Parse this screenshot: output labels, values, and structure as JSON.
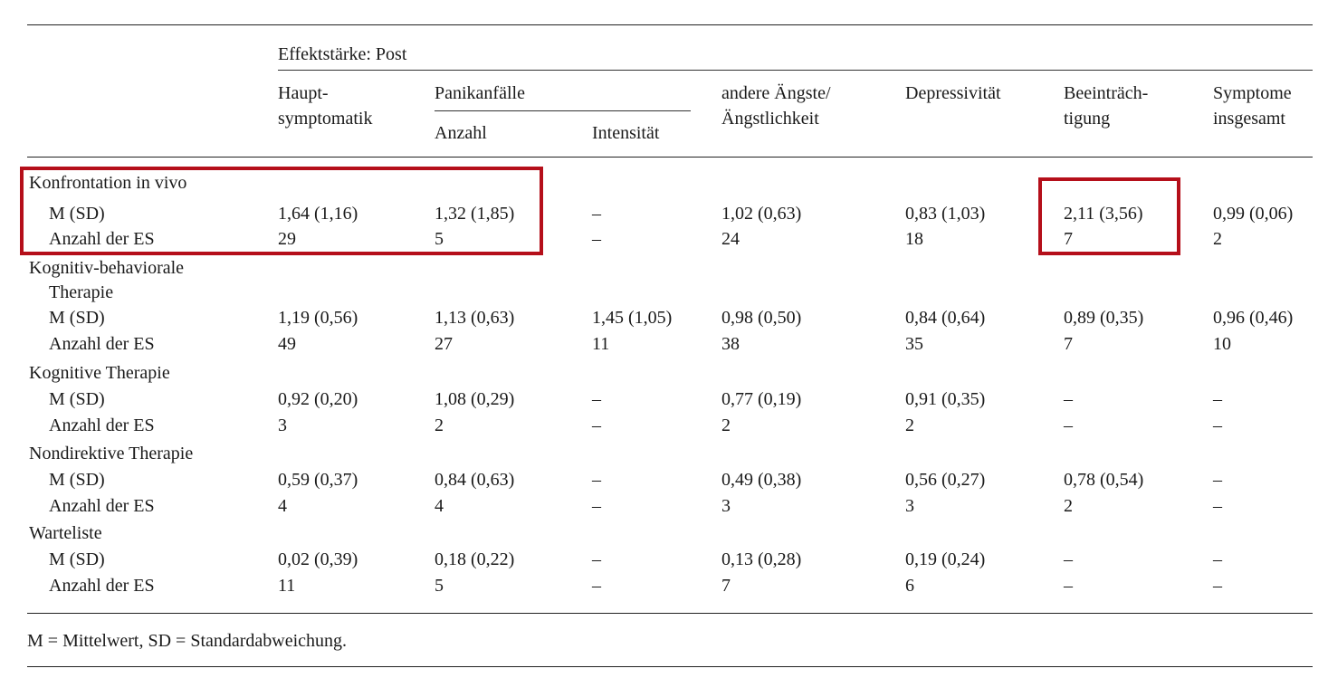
{
  "header": {
    "group_label": "Effektstärke: Post",
    "columns": {
      "haupt_1": "Haupt-",
      "haupt_2": "symptomatik",
      "panik": "Panikanfälle",
      "anzahl": "Anzahl",
      "intensitaet": "Intensität",
      "angst_1": "andere Ängste/",
      "angst_2": "Ängstlichkeit",
      "depr": "Depressivität",
      "beein_1": "Beeinträch-",
      "beein_2": "tigung",
      "sympt_1": "Symptome",
      "sympt_2": "insgesamt"
    }
  },
  "groups": [
    {
      "name": [
        "Konfrontation in vivo"
      ],
      "m_label": "M (SD)",
      "n_label": "Anzahl der ES",
      "m": [
        "1,64 (1,16)",
        "1,32 (1,85)",
        "–",
        "1,02 (0,63)",
        "0,83 (1,03)",
        "2,11 (3,56)",
        "0,99 (0,06)"
      ],
      "n": [
        "29",
        "5",
        "–",
        "24",
        "18",
        "7",
        "2"
      ]
    },
    {
      "name": [
        "Kognitiv-behaviorale",
        "Therapie"
      ],
      "m_label": "M (SD)",
      "n_label": "Anzahl der ES",
      "m": [
        "1,19 (0,56)",
        "1,13 (0,63)",
        "1,45 (1,05)",
        "0,98 (0,50)",
        "0,84 (0,64)",
        "0,89 (0,35)",
        "0,96 (0,46)"
      ],
      "n": [
        "49",
        "27",
        "11",
        "38",
        "35",
        "7",
        "10"
      ]
    },
    {
      "name": [
        "Kognitive Therapie"
      ],
      "m_label": "M (SD)",
      "n_label": "Anzahl der ES",
      "m": [
        "0,92 (0,20)",
        "1,08 (0,29)",
        "–",
        "0,77 (0,19)",
        "0,91 (0,35)",
        "–",
        "–"
      ],
      "n": [
        "3",
        "2",
        "–",
        "2",
        "2",
        "–",
        "–"
      ]
    },
    {
      "name": [
        "Nondirektive Therapie"
      ],
      "m_label": "M (SD)",
      "n_label": "Anzahl der ES",
      "m": [
        "0,59 (0,37)",
        "0,84 (0,63)",
        "–",
        "0,49 (0,38)",
        "0,56 (0,27)",
        "0,78 (0,54)",
        "–"
      ],
      "n": [
        "4",
        "4",
        "–",
        "3",
        "3",
        "2",
        "–"
      ]
    },
    {
      "name": [
        "Warteliste"
      ],
      "m_label": "M (SD)",
      "n_label": "Anzahl der ES",
      "m": [
        "0,02 (0,39)",
        "0,18 (0,22)",
        "–",
        "0,13 (0,28)",
        "0,19 (0,24)",
        "–",
        "–"
      ],
      "n": [
        "11",
        "5",
        "–",
        "7",
        "6",
        "–",
        "–"
      ]
    }
  ],
  "footnote": "M = Mittelwert, SD = Standardabweichung.",
  "highlight_color": "#b50f1a"
}
